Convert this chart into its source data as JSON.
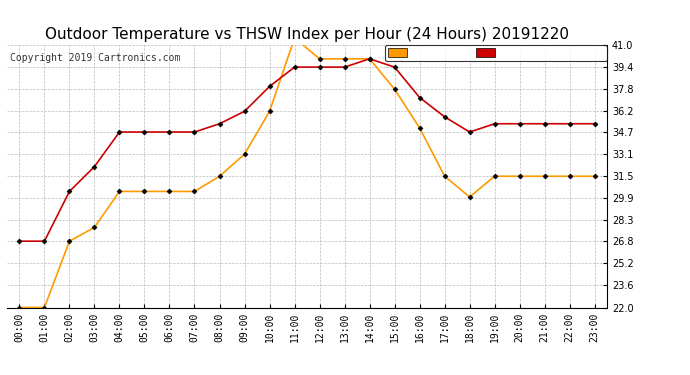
{
  "title": "Outdoor Temperature vs THSW Index per Hour (24 Hours) 20191220",
  "copyright": "Copyright 2019 Cartronics.com",
  "hours": [
    "00:00",
    "01:00",
    "02:00",
    "03:00",
    "04:00",
    "05:00",
    "06:00",
    "07:00",
    "08:00",
    "09:00",
    "10:00",
    "11:00",
    "12:00",
    "13:00",
    "14:00",
    "15:00",
    "16:00",
    "17:00",
    "18:00",
    "19:00",
    "20:00",
    "21:00",
    "22:00",
    "23:00"
  ],
  "temperature": [
    26.8,
    26.8,
    30.4,
    32.2,
    34.7,
    34.7,
    34.7,
    34.7,
    35.3,
    36.2,
    38.0,
    39.4,
    39.4,
    39.4,
    40.0,
    39.4,
    37.2,
    35.8,
    34.7,
    35.3,
    35.3,
    35.3,
    35.3,
    35.3
  ],
  "thsw": [
    22.0,
    22.0,
    26.8,
    27.8,
    30.4,
    30.4,
    30.4,
    30.4,
    31.5,
    33.1,
    36.2,
    41.5,
    40.0,
    40.0,
    40.0,
    37.8,
    35.0,
    31.5,
    30.0,
    31.5,
    31.5,
    31.5,
    31.5,
    31.5
  ],
  "temp_color": "#cc0000",
  "thsw_color": "#ff9900",
  "ylim_min": 22.0,
  "ylim_max": 41.0,
  "yticks": [
    22.0,
    23.6,
    25.2,
    26.8,
    28.3,
    29.9,
    31.5,
    33.1,
    34.7,
    36.2,
    37.8,
    39.4,
    41.0
  ],
  "bg_color": "#ffffff",
  "grid_color": "#bbbbbb",
  "title_fontsize": 11,
  "copyright_fontsize": 7,
  "tick_fontsize": 7,
  "legend_thsw_bg": "#ff9900",
  "legend_temp_bg": "#cc0000"
}
